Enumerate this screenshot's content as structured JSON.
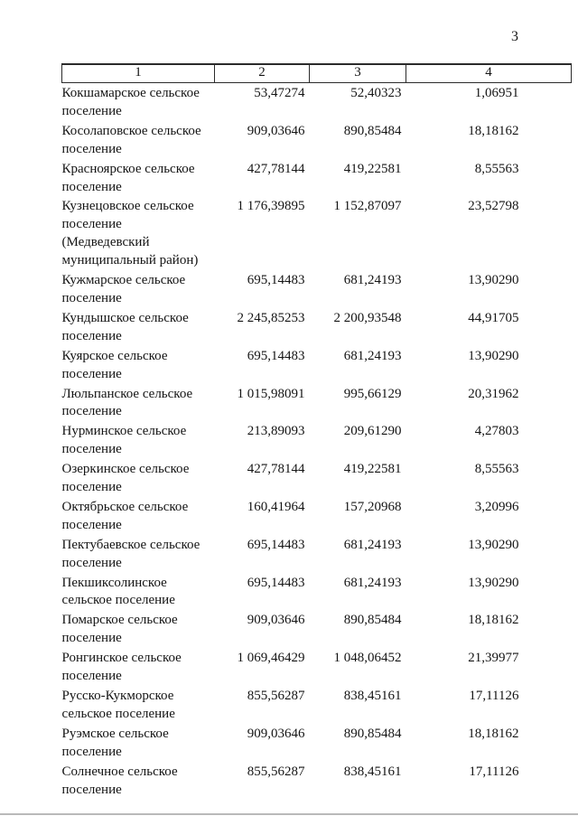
{
  "page": {
    "number": "3"
  },
  "table": {
    "headers": [
      "1",
      "2",
      "3",
      "4"
    ],
    "rows": [
      {
        "name": "Кокшамарское сельское поселение",
        "c2": "53,47274",
        "c3": "52,40323",
        "c4": "1,06951"
      },
      {
        "name": "Косолаповское сельское поселение",
        "c2": "909,03646",
        "c3": "890,85484",
        "c4": "18,18162"
      },
      {
        "name": "Красноярское сельское поселение",
        "c2": "427,78144",
        "c3": "419,22581",
        "c4": "8,55563"
      },
      {
        "name": "Кузнецовское сельское поселение (Медведевский муниципальный район)",
        "c2": "1 176,39895",
        "c3": "1 152,87097",
        "c4": "23,52798"
      },
      {
        "name": "Кужмарское сельское поселение",
        "c2": "695,14483",
        "c3": "681,24193",
        "c4": "13,90290"
      },
      {
        "name": "Кундышское сельское поселение",
        "c2": "2 245,85253",
        "c3": "2 200,93548",
        "c4": "44,91705"
      },
      {
        "name": "Куярское сельское поселение",
        "c2": "695,14483",
        "c3": "681,24193",
        "c4": "13,90290"
      },
      {
        "name": "Люльпанское сельское поселение",
        "c2": "1 015,98091",
        "c3": "995,66129",
        "c4": "20,31962"
      },
      {
        "name": "Нурминское сельское поселение",
        "c2": "213,89093",
        "c3": "209,61290",
        "c4": "4,27803"
      },
      {
        "name": "Озеркинское сельское поселение",
        "c2": "427,78144",
        "c3": "419,22581",
        "c4": "8,55563"
      },
      {
        "name": "Октябрьское сельское поселение",
        "c2": "160,41964",
        "c3": "157,20968",
        "c4": "3,20996"
      },
      {
        "name": "Пектубаевское сельское поселение",
        "c2": "695,14483",
        "c3": "681,24193",
        "c4": "13,90290"
      },
      {
        "name": "Пекшиксолинское сельское поселение",
        "c2": "695,14483",
        "c3": "681,24193",
        "c4": "13,90290"
      },
      {
        "name": "Помарское сельское поселение",
        "c2": "909,03646",
        "c3": "890,85484",
        "c4": "18,18162"
      },
      {
        "name": "Ронгинское сельское поселение",
        "c2": "1 069,46429",
        "c3": "1 048,06452",
        "c4": "21,39977"
      },
      {
        "name": "Русско-Кукморское сельское поселение",
        "c2": "855,56287",
        "c3": "838,45161",
        "c4": "17,11126"
      },
      {
        "name": "Руэмское сельское поселение",
        "c2": "909,03646",
        "c3": "890,85484",
        "c4": "18,18162"
      },
      {
        "name": "Солнечное сельское поселение",
        "c2": "855,56287",
        "c3": "838,45161",
        "c4": "17,11126"
      }
    ]
  }
}
